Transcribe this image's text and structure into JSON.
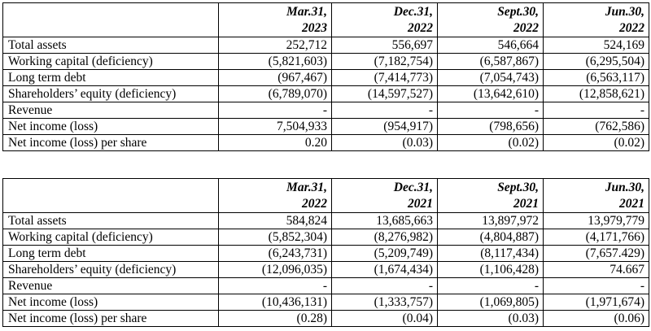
{
  "tables": [
    {
      "columns": [
        {
          "line1": "Mar.31,",
          "line2": "2023"
        },
        {
          "line1": "Dec.31,",
          "line2": "2022"
        },
        {
          "line1": "Sept.30,",
          "line2": "2022"
        },
        {
          "line1": "Jun.30,",
          "line2": "2022"
        }
      ],
      "rows": [
        {
          "label": "Total assets",
          "values": [
            "252,712",
            "556,697",
            "546,664",
            "524,169"
          ]
        },
        {
          "label": "Working capital (deficiency)",
          "values": [
            "(5,821,603)",
            "(7,182,754)",
            "(6,587,867)",
            "(6,295,504)"
          ]
        },
        {
          "label": "Long term debt",
          "values": [
            "(967,467)",
            "(7,414,773)",
            "(7,054,743)",
            "(6,563,117)"
          ]
        },
        {
          "label": "Shareholders’ equity (deficiency)",
          "values": [
            "(6,789,070)",
            "(14,597,527)",
            "(13,642,610)",
            "(12,858,621)"
          ]
        },
        {
          "label": "Revenue",
          "values": [
            "-",
            "-",
            "-",
            "-"
          ]
        },
        {
          "label": "Net income (loss)",
          "values": [
            "7,504,933",
            "(954,917)",
            "(798,656)",
            "(762,586)"
          ]
        },
        {
          "label": "Net income (loss) per share",
          "values": [
            "0.20",
            "(0.03)",
            "(0.02)",
            "(0.02)"
          ]
        }
      ]
    },
    {
      "columns": [
        {
          "line1": "Mar.31,",
          "line2": "2022"
        },
        {
          "line1": "Dec.31,",
          "line2": "2021"
        },
        {
          "line1": "Sept.30,",
          "line2": "2021"
        },
        {
          "line1": "Jun.30,",
          "line2": "2021"
        }
      ],
      "rows": [
        {
          "label": "Total assets",
          "values": [
            "584,824",
            "13,685,663",
            "13,897,972",
            "13,979,779"
          ]
        },
        {
          "label": "Working capital (deficiency)",
          "values": [
            "(5,852,304)",
            "(8,276,982)",
            "(4,804,887)",
            "(4,171,766)"
          ]
        },
        {
          "label": "Long term debt",
          "values": [
            "(6,243,731)",
            "(5,209,749)",
            "(8,117,434)",
            "(7,657.429)"
          ]
        },
        {
          "label": "Shareholders’ equity (deficiency)",
          "values": [
            "(12,096,035)",
            "(1,674,434)",
            "(1,106,428)",
            "74.667"
          ]
        },
        {
          "label": "Revenue",
          "values": [
            "-",
            "-",
            "-",
            "-"
          ]
        },
        {
          "label": "Net income (loss)",
          "values": [
            "(10,436,131)",
            "(1,333,757)",
            "(1,069,805)",
            "(1,971,674)"
          ]
        },
        {
          "label": "Net income (loss) per share",
          "values": [
            "(0.28)",
            "(0.04)",
            "(0.03)",
            "(0.06)"
          ]
        }
      ]
    }
  ]
}
